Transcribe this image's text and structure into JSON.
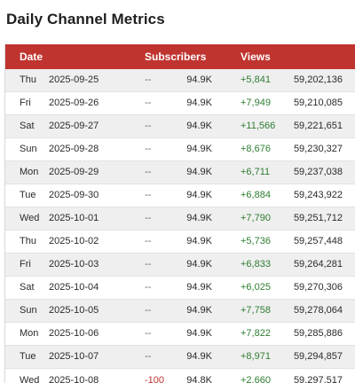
{
  "title": "Daily Channel Metrics",
  "columns": {
    "date": "Date",
    "subscribers": "Subscribers",
    "views": "Views"
  },
  "rows": [
    {
      "day": "Thu",
      "date": "2025-09-25",
      "subs_delta": "--",
      "subs": "94.9K",
      "views_delta": "+5,841",
      "views": "59,202,136"
    },
    {
      "day": "Fri",
      "date": "2025-09-26",
      "subs_delta": "--",
      "subs": "94.9K",
      "views_delta": "+7,949",
      "views": "59,210,085"
    },
    {
      "day": "Sat",
      "date": "2025-09-27",
      "subs_delta": "--",
      "subs": "94.9K",
      "views_delta": "+11,566",
      "views": "59,221,651"
    },
    {
      "day": "Sun",
      "date": "2025-09-28",
      "subs_delta": "--",
      "subs": "94.9K",
      "views_delta": "+8,676",
      "views": "59,230,327"
    },
    {
      "day": "Mon",
      "date": "2025-09-29",
      "subs_delta": "--",
      "subs": "94.9K",
      "views_delta": "+6,711",
      "views": "59,237,038"
    },
    {
      "day": "Tue",
      "date": "2025-09-30",
      "subs_delta": "--",
      "subs": "94.9K",
      "views_delta": "+6,884",
      "views": "59,243,922"
    },
    {
      "day": "Wed",
      "date": "2025-10-01",
      "subs_delta": "--",
      "subs": "94.9K",
      "views_delta": "+7,790",
      "views": "59,251,712"
    },
    {
      "day": "Thu",
      "date": "2025-10-02",
      "subs_delta": "--",
      "subs": "94.9K",
      "views_delta": "+5,736",
      "views": "59,257,448"
    },
    {
      "day": "Fri",
      "date": "2025-10-03",
      "subs_delta": "--",
      "subs": "94.9K",
      "views_delta": "+6,833",
      "views": "59,264,281"
    },
    {
      "day": "Sat",
      "date": "2025-10-04",
      "subs_delta": "--",
      "subs": "94.9K",
      "views_delta": "+6,025",
      "views": "59,270,306"
    },
    {
      "day": "Sun",
      "date": "2025-10-05",
      "subs_delta": "--",
      "subs": "94.9K",
      "views_delta": "+7,758",
      "views": "59,278,064"
    },
    {
      "day": "Mon",
      "date": "2025-10-06",
      "subs_delta": "--",
      "subs": "94.9K",
      "views_delta": "+7,822",
      "views": "59,285,886"
    },
    {
      "day": "Tue",
      "date": "2025-10-07",
      "subs_delta": "--",
      "subs": "94.9K",
      "views_delta": "+8,971",
      "views": "59,294,857"
    },
    {
      "day": "Wed",
      "date": "2025-10-08",
      "subs_delta": "-100",
      "subs": "94.8K",
      "views_delta": "+2,660",
      "views": "59,297,517"
    }
  ],
  "colors": {
    "header_bg": "#c0342f",
    "positive": "#2e7d32",
    "negative": "#c0342f"
  }
}
